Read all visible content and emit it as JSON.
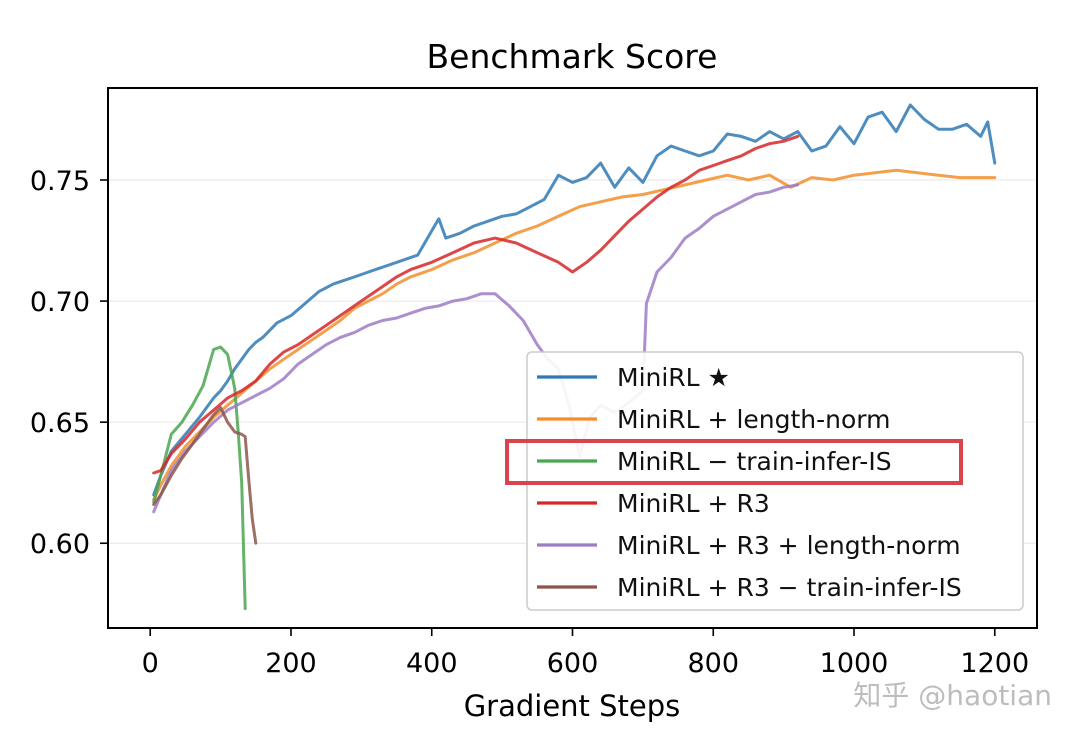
{
  "chart_data": {
    "type": "line",
    "title": "Benchmark Score",
    "xlabel": "Gradient Steps",
    "ylabel": "",
    "xlim": [
      -60,
      1260
    ],
    "ylim": [
      0.565,
      0.788
    ],
    "xticks": [
      0,
      200,
      400,
      600,
      800,
      1000,
      1200
    ],
    "xtick_labels": [
      "0",
      "200",
      "400",
      "600",
      "800",
      "1000",
      "1200"
    ],
    "yticks": [
      0.6,
      0.65,
      0.7,
      0.75
    ],
    "ytick_labels": [
      "0.60",
      "0.65",
      "0.70",
      "0.75"
    ],
    "grid": "horizontal",
    "legend_position": "lower-right",
    "highlighted_legend_entry": "MiniRL − train-infer-IS",
    "highlight_color": "#d9444b",
    "series": [
      {
        "name": "MiniRL ★",
        "color": "#2f79b5",
        "x": [
          5,
          15,
          30,
          50,
          70,
          90,
          100,
          110,
          120,
          130,
          140,
          150,
          160,
          170,
          180,
          200,
          220,
          240,
          260,
          280,
          300,
          320,
          340,
          360,
          380,
          400,
          410,
          420,
          440,
          460,
          480,
          500,
          520,
          540,
          560,
          580,
          600,
          620,
          640,
          660,
          680,
          700,
          720,
          740,
          760,
          780,
          800,
          820,
          840,
          860,
          880,
          900,
          920,
          940,
          960,
          980,
          1000,
          1020,
          1040,
          1060,
          1080,
          1100,
          1120,
          1140,
          1160,
          1180,
          1190,
          1200
        ],
        "y": [
          0.62,
          0.628,
          0.638,
          0.645,
          0.652,
          0.66,
          0.663,
          0.667,
          0.672,
          0.676,
          0.68,
          0.683,
          0.685,
          0.688,
          0.691,
          0.694,
          0.699,
          0.704,
          0.707,
          0.709,
          0.711,
          0.713,
          0.715,
          0.717,
          0.719,
          0.729,
          0.734,
          0.726,
          0.728,
          0.731,
          0.733,
          0.735,
          0.736,
          0.739,
          0.742,
          0.752,
          0.749,
          0.751,
          0.757,
          0.747,
          0.755,
          0.749,
          0.76,
          0.764,
          0.762,
          0.76,
          0.762,
          0.769,
          0.768,
          0.766,
          0.77,
          0.767,
          0.77,
          0.762,
          0.764,
          0.772,
          0.765,
          0.776,
          0.778,
          0.77,
          0.781,
          0.775,
          0.771,
          0.771,
          0.773,
          0.768,
          0.774,
          0.757
        ]
      },
      {
        "name": "MiniRL + length-norm",
        "color": "#f28e2b",
        "x": [
          5,
          15,
          30,
          50,
          70,
          90,
          110,
          130,
          150,
          170,
          190,
          210,
          230,
          250,
          270,
          290,
          310,
          330,
          350,
          370,
          400,
          430,
          460,
          490,
          520,
          550,
          580,
          610,
          640,
          670,
          700,
          730,
          760,
          790,
          820,
          850,
          880,
          910,
          940,
          970,
          1000,
          1030,
          1060,
          1090,
          1120,
          1150,
          1180,
          1200
        ],
        "y": [
          0.618,
          0.624,
          0.632,
          0.64,
          0.646,
          0.652,
          0.657,
          0.662,
          0.667,
          0.672,
          0.676,
          0.68,
          0.684,
          0.688,
          0.692,
          0.697,
          0.7,
          0.703,
          0.707,
          0.71,
          0.713,
          0.717,
          0.72,
          0.724,
          0.728,
          0.731,
          0.735,
          0.739,
          0.741,
          0.743,
          0.744,
          0.746,
          0.748,
          0.75,
          0.752,
          0.75,
          0.752,
          0.747,
          0.751,
          0.75,
          0.752,
          0.753,
          0.754,
          0.753,
          0.752,
          0.751,
          0.751,
          0.751
        ]
      },
      {
        "name": "MiniRL − train-infer-IS",
        "color": "#4aa64f",
        "x": [
          5,
          15,
          30,
          45,
          60,
          75,
          90,
          100,
          110,
          115,
          120,
          125,
          130,
          135
        ],
        "y": [
          0.617,
          0.628,
          0.645,
          0.65,
          0.657,
          0.665,
          0.68,
          0.681,
          0.678,
          0.671,
          0.664,
          0.646,
          0.625,
          0.573
        ]
      },
      {
        "name": "MiniRL + R3",
        "color": "#d62728",
        "x": [
          5,
          15,
          30,
          50,
          70,
          90,
          110,
          130,
          150,
          170,
          190,
          210,
          230,
          250,
          270,
          290,
          310,
          330,
          350,
          370,
          400,
          430,
          460,
          490,
          520,
          550,
          580,
          600,
          620,
          640,
          660,
          680,
          700,
          720,
          740,
          760,
          780,
          800,
          820,
          840,
          860,
          880,
          900,
          920
        ],
        "y": [
          0.629,
          0.63,
          0.637,
          0.643,
          0.65,
          0.655,
          0.66,
          0.663,
          0.667,
          0.674,
          0.679,
          0.682,
          0.686,
          0.69,
          0.694,
          0.698,
          0.702,
          0.706,
          0.71,
          0.713,
          0.716,
          0.72,
          0.724,
          0.726,
          0.724,
          0.72,
          0.716,
          0.712,
          0.716,
          0.721,
          0.727,
          0.733,
          0.738,
          0.743,
          0.747,
          0.75,
          0.754,
          0.756,
          0.758,
          0.76,
          0.763,
          0.765,
          0.766,
          0.768
        ]
      },
      {
        "name": "MiniRL + R3 + length-norm",
        "color": "#9c7cc4",
        "x": [
          5,
          15,
          30,
          50,
          70,
          90,
          110,
          130,
          150,
          170,
          190,
          210,
          230,
          250,
          270,
          290,
          310,
          330,
          350,
          370,
          390,
          410,
          430,
          450,
          470,
          490,
          510,
          530,
          550,
          565,
          580,
          595,
          610,
          625,
          640,
          660,
          680,
          700,
          705,
          720,
          740,
          760,
          780,
          800,
          820,
          840,
          860,
          880,
          900,
          920
        ],
        "y": [
          0.613,
          0.62,
          0.63,
          0.638,
          0.644,
          0.65,
          0.655,
          0.658,
          0.661,
          0.664,
          0.668,
          0.674,
          0.678,
          0.682,
          0.685,
          0.687,
          0.69,
          0.692,
          0.693,
          0.695,
          0.697,
          0.698,
          0.7,
          0.701,
          0.703,
          0.703,
          0.698,
          0.692,
          0.682,
          0.676,
          0.672,
          0.657,
          0.636,
          0.652,
          0.657,
          0.654,
          0.658,
          0.663,
          0.699,
          0.712,
          0.718,
          0.726,
          0.73,
          0.735,
          0.738,
          0.741,
          0.744,
          0.745,
          0.747,
          0.748
        ]
      },
      {
        "name": "MiniRL + R3 − train-infer-IS",
        "color": "#8c564b",
        "x": [
          5,
          15,
          30,
          45,
          60,
          75,
          90,
          100,
          110,
          120,
          130,
          135,
          140,
          145,
          150
        ],
        "y": [
          0.616,
          0.62,
          0.628,
          0.635,
          0.641,
          0.647,
          0.653,
          0.656,
          0.65,
          0.646,
          0.645,
          0.644,
          0.626,
          0.61,
          0.6
        ]
      }
    ]
  },
  "watermark": "知乎 @haotian"
}
